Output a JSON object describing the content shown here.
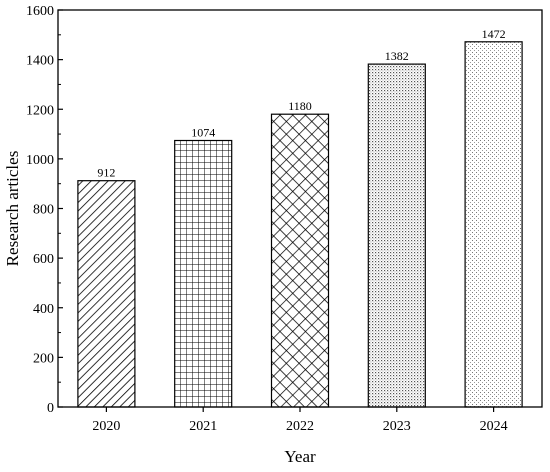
{
  "chart_data": {
    "type": "bar",
    "categories": [
      "2020",
      "2021",
      "2022",
      "2023",
      "2024"
    ],
    "values": [
      912,
      1074,
      1180,
      1382,
      1472
    ],
    "data_labels": [
      "912",
      "1074",
      "1180",
      "1382",
      "1472"
    ],
    "title": "",
    "xlabel": "Year",
    "ylabel": "Research articles",
    "ylim": [
      0,
      1600
    ],
    "yticks": [
      0,
      200,
      400,
      600,
      800,
      1000,
      1200,
      1400,
      1600
    ],
    "grid": false,
    "legend": "none",
    "bar_patterns": [
      "diagonal-hatch",
      "square-grid",
      "cross-hatch",
      "dense-dots",
      "fine-dots"
    ],
    "colors": {
      "bar_fill": "#ffffff",
      "bar_stroke": "#000000",
      "axis": "#000000"
    }
  }
}
